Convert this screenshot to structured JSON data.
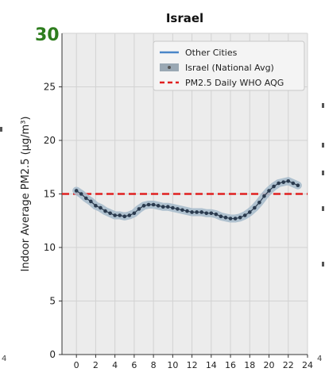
{
  "overlay": {
    "corner_value": "30",
    "left_edge_tick": "4",
    "right_edge_tick": "4"
  },
  "chart_data": {
    "type": "line",
    "title": "Israel",
    "xlabel": "",
    "ylabel": "Indoor Average PM2.5 (μg/m³)",
    "xlim": [
      -1.5,
      24
    ],
    "ylim": [
      0,
      30
    ],
    "xticks": [
      0,
      2,
      4,
      6,
      8,
      10,
      12,
      14,
      16,
      18,
      20,
      22,
      24
    ],
    "yticks": [
      0,
      5,
      10,
      15,
      20,
      25
    ],
    "grid": true,
    "legend_position": "top-right",
    "legend": [
      {
        "label": "Other Cities",
        "style": "line",
        "color": "#4a86c8"
      },
      {
        "label": "Israel (National Avg)",
        "style": "band-marker",
        "color": "#9aa8b4"
      },
      {
        "label": "PM2.5 Daily WHO AQG",
        "style": "dashed",
        "color": "#e02020"
      }
    ],
    "x": [
      0,
      0.5,
      1,
      1.5,
      2,
      2.5,
      3,
      3.5,
      4,
      4.5,
      5,
      5.5,
      6,
      6.5,
      7,
      7.5,
      8,
      8.5,
      9,
      9.5,
      10,
      10.5,
      11,
      11.5,
      12,
      12.5,
      13,
      13.5,
      14,
      14.5,
      15,
      15.5,
      16,
      16.5,
      17,
      17.5,
      18,
      18.5,
      19,
      19.5,
      20,
      20.5,
      21,
      21.5,
      22,
      22.5,
      23
    ],
    "series": [
      {
        "name": "Israel (National Avg)",
        "values": [
          15.3,
          15.0,
          14.6,
          14.3,
          13.9,
          13.7,
          13.4,
          13.2,
          13.0,
          13.0,
          12.9,
          13.0,
          13.2,
          13.6,
          13.9,
          14.0,
          14.0,
          13.9,
          13.8,
          13.8,
          13.7,
          13.6,
          13.5,
          13.4,
          13.3,
          13.3,
          13.3,
          13.2,
          13.2,
          13.1,
          12.9,
          12.8,
          12.7,
          12.7,
          12.8,
          13.0,
          13.3,
          13.7,
          14.2,
          14.8,
          15.3,
          15.7,
          16.0,
          16.1,
          16.2,
          16.0,
          15.8
        ],
        "color": "#2a3a4e",
        "band_color": "#a9bccc"
      }
    ],
    "reference_line": {
      "name": "PM2.5 Daily WHO AQG",
      "y": 15,
      "color": "#e02020"
    }
  }
}
